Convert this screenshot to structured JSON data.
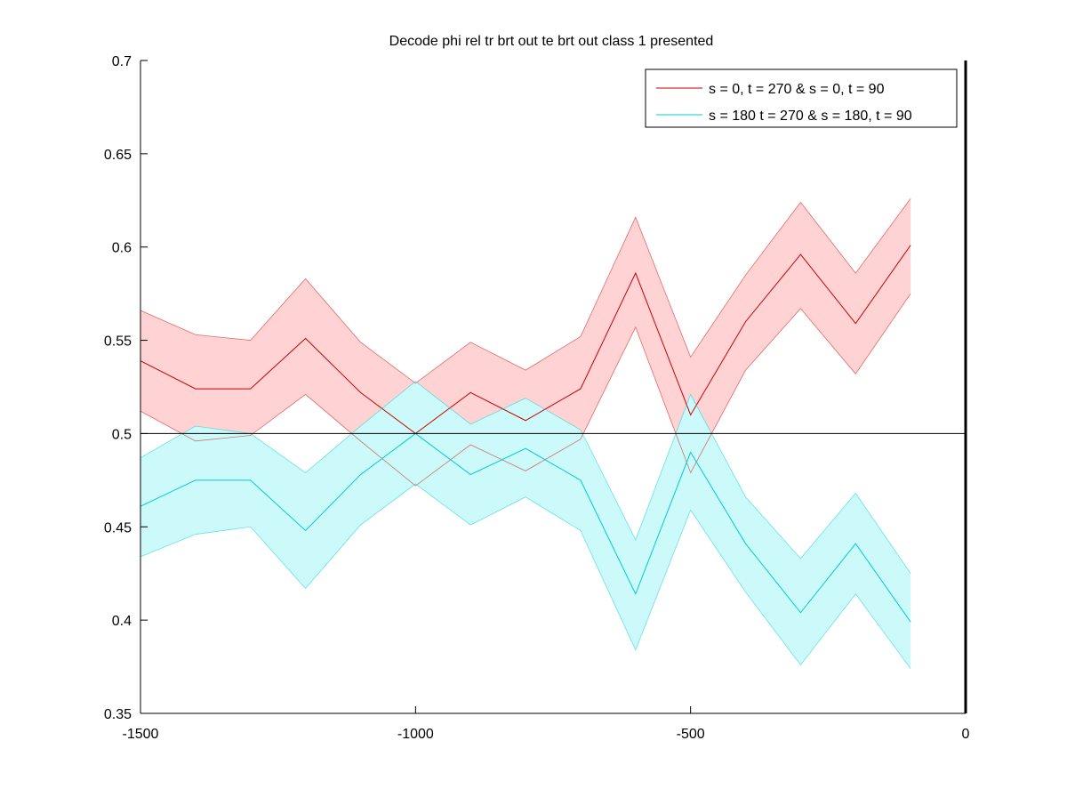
{
  "chart_data": {
    "type": "line",
    "title": "Decode phi rel tr brt out te brt out  class 1 presented",
    "xlabel": "",
    "ylabel": "",
    "xlim": [
      -1500,
      0
    ],
    "ylim": [
      0.35,
      0.7
    ],
    "xticks": [
      -1500,
      -1000,
      -500,
      0
    ],
    "xtick_labels": [
      "-1500",
      "-1000",
      "-500",
      "0"
    ],
    "yticks": [
      0.35,
      0.4,
      0.45,
      0.5,
      0.55,
      0.6,
      0.65,
      0.7
    ],
    "ytick_labels": [
      "0.35",
      "0.4",
      "0.45",
      "0.5",
      "0.55",
      "0.6",
      "0.65",
      "0.7"
    ],
    "grid": false,
    "legend_position": "top-right",
    "reference_lines": [
      {
        "orientation": "horizontal",
        "value": 0.5,
        "color": "#000000"
      },
      {
        "orientation": "vertical",
        "value": 0,
        "color": "#000000"
      }
    ],
    "x": [
      -1500,
      -1400,
      -1300,
      -1200,
      -1100,
      -1000,
      -900,
      -800,
      -700,
      -600,
      -500,
      -400,
      -300,
      -200,
      -100
    ],
    "series": [
      {
        "name": "s = 0, t = 270 & s = 0, t = 90",
        "color": "#cc0000",
        "fill_color": "#ffd3d3",
        "values": [
          0.539,
          0.524,
          0.524,
          0.551,
          0.522,
          0.5,
          0.522,
          0.507,
          0.524,
          0.586,
          0.51,
          0.56,
          0.596,
          0.559,
          0.601
        ],
        "upper": [
          0.566,
          0.553,
          0.55,
          0.583,
          0.549,
          0.527,
          0.549,
          0.534,
          0.552,
          0.616,
          0.541,
          0.585,
          0.624,
          0.586,
          0.626
        ],
        "lower": [
          0.512,
          0.496,
          0.499,
          0.521,
          0.496,
          0.472,
          0.494,
          0.48,
          0.497,
          0.557,
          0.479,
          0.534,
          0.567,
          0.532,
          0.575
        ]
      },
      {
        "name": "s = 180 t = 270 & s = 180, t = 90",
        "color": "#00cccc",
        "fill_color": "#ccfafa",
        "values": [
          0.461,
          0.475,
          0.475,
          0.448,
          0.478,
          0.5,
          0.478,
          0.492,
          0.475,
          0.414,
          0.49,
          0.441,
          0.404,
          0.441,
          0.399
        ],
        "upper": [
          0.487,
          0.504,
          0.5,
          0.479,
          0.504,
          0.528,
          0.505,
          0.519,
          0.502,
          0.443,
          0.521,
          0.466,
          0.433,
          0.468,
          0.425
        ],
        "lower": [
          0.434,
          0.446,
          0.45,
          0.417,
          0.451,
          0.473,
          0.451,
          0.466,
          0.448,
          0.384,
          0.459,
          0.415,
          0.376,
          0.414,
          0.374
        ]
      }
    ]
  }
}
